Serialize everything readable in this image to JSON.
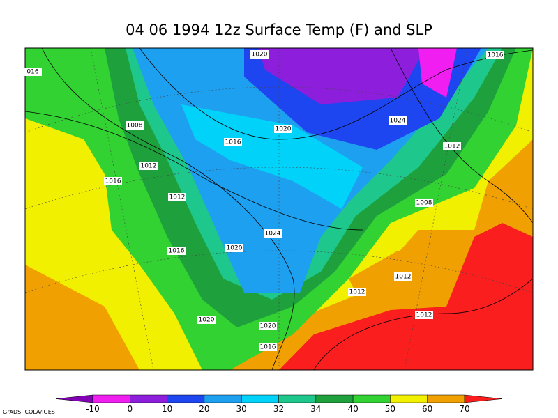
{
  "title": "04 06 1994 12z Surface Temp (F) and SLP",
  "isobar_labels": [
    1020,
    1016,
    "016",
    1008,
    1020,
    1024,
    1016,
    1012,
    1012,
    1016,
    1012,
    1008,
    1024,
    1020,
    1016,
    1012,
    1012,
    1012,
    1020,
    1020,
    1016
  ],
  "colorbar": {
    "levels": [
      -10,
      0,
      10,
      20,
      30,
      32,
      34,
      40,
      50,
      60,
      70
    ],
    "colors": [
      "#8200b4",
      "#f01ef0",
      "#8c1edc",
      "#1e46f0",
      "#1ea0f0",
      "#00d2fa",
      "#1ec88c",
      "#1ea03c",
      "#32d232",
      "#f0f000",
      "#f0a000",
      "#fa1e1e"
    ]
  },
  "credit": "GrADS: COLA/IGES"
}
